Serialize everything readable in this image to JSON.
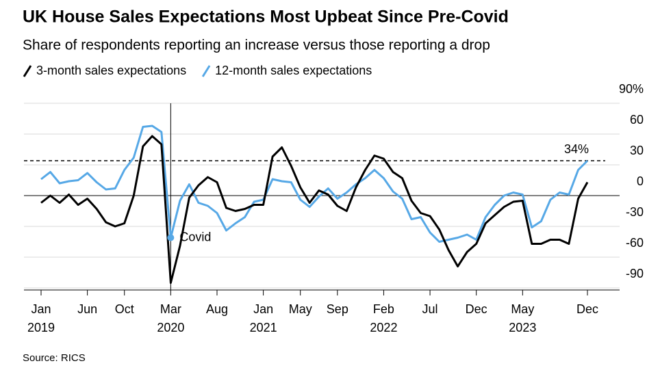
{
  "chart_data": {
    "type": "line",
    "title": "UK House Sales Expectations Most Upbeat Since Pre-Covid",
    "subtitle": "Share of respondents reporting an increase versus those reporting a drop",
    "source": "Source: RICS",
    "x": [
      "2019-01",
      "2019-02",
      "2019-03",
      "2019-04",
      "2019-05",
      "2019-06",
      "2019-07",
      "2019-08",
      "2019-09",
      "2019-10",
      "2019-11",
      "2019-12",
      "2020-01",
      "2020-02",
      "2020-03",
      "2020-04",
      "2020-05",
      "2020-06",
      "2020-07",
      "2020-08",
      "2020-09",
      "2020-10",
      "2020-11",
      "2020-12",
      "2021-01",
      "2021-02",
      "2021-03",
      "2021-04",
      "2021-05",
      "2021-06",
      "2021-07",
      "2021-08",
      "2021-09",
      "2021-10",
      "2021-11",
      "2021-12",
      "2022-01",
      "2022-02",
      "2022-03",
      "2022-04",
      "2022-05",
      "2022-06",
      "2022-07",
      "2022-08",
      "2022-09",
      "2022-10",
      "2022-11",
      "2022-12",
      "2023-01",
      "2023-02",
      "2023-03",
      "2023-04",
      "2023-05",
      "2023-06",
      "2023-07",
      "2023-08",
      "2023-09",
      "2023-10",
      "2023-11",
      "2023-12"
    ],
    "series": [
      {
        "name": "3-month sales expectations",
        "color": "#000000",
        "values": [
          -7,
          0,
          -7,
          1,
          -9,
          -3,
          -13,
          -26,
          -30,
          -27,
          0,
          48,
          58,
          50,
          -85,
          -49,
          -2,
          10,
          18,
          13,
          -12,
          -15,
          -13,
          -9,
          -9,
          38,
          47,
          29,
          8,
          -7,
          5,
          1,
          -10,
          -15,
          8,
          25,
          39,
          36,
          23,
          17,
          -5,
          -17,
          -20,
          -33,
          -53,
          -69,
          -55,
          -47,
          -27,
          -19,
          -11,
          -6,
          -5,
          -47,
          -47,
          -43,
          -43,
          -47,
          -3,
          13
        ]
      },
      {
        "name": "12-month sales expectations",
        "color": "#56a8e6",
        "values": [
          16,
          23,
          12,
          14,
          15,
          22,
          13,
          6,
          7,
          25,
          37,
          67,
          68,
          62,
          -41,
          -5,
          11,
          -7,
          -10,
          -17,
          -34,
          -27,
          -21,
          -6,
          -4,
          16,
          14,
          13,
          -4,
          -11,
          -1,
          7,
          -3,
          3,
          11,
          17,
          25,
          17,
          4,
          -3,
          -23,
          -21,
          -36,
          -45,
          -43,
          -41,
          -38,
          -43,
          -21,
          -9,
          0,
          3,
          1,
          -31,
          -25,
          -4,
          3,
          1,
          25,
          34
        ]
      }
    ],
    "xticks": [
      {
        "value": "2019-01",
        "label": "Jan"
      },
      {
        "value": "2019-06",
        "label": "Jun"
      },
      {
        "value": "2019-10",
        "label": "Oct"
      },
      {
        "value": "2020-03",
        "label": "Mar"
      },
      {
        "value": "2020-08",
        "label": "Aug"
      },
      {
        "value": "2021-01",
        "label": "Jan"
      },
      {
        "value": "2021-05",
        "label": "May"
      },
      {
        "value": "2021-09",
        "label": "Sep"
      },
      {
        "value": "2022-02",
        "label": "Feb"
      },
      {
        "value": "2022-07",
        "label": "Jul"
      },
      {
        "value": "2022-12",
        "label": "Dec"
      },
      {
        "value": "2023-05",
        "label": "May"
      },
      {
        "value": "2023-12",
        "label": "Dec"
      }
    ],
    "xtick_years": [
      {
        "value": "2019-01",
        "label": "2019"
      },
      {
        "value": "2020-03",
        "label": "2020"
      },
      {
        "value": "2021-01",
        "label": "2021"
      },
      {
        "value": "2022-02",
        "label": "2022"
      },
      {
        "value": "2023-05",
        "label": "2023"
      }
    ],
    "ylim": [
      -92,
      90
    ],
    "yticks": [
      {
        "value": 90,
        "label": "90%"
      },
      60,
      30,
      0,
      -30,
      -60,
      -90
    ],
    "grid": true,
    "reference_line": {
      "value": 34,
      "label": "34%"
    },
    "annotation": {
      "x": "2020-03",
      "value": -41,
      "label": "Covid"
    }
  }
}
